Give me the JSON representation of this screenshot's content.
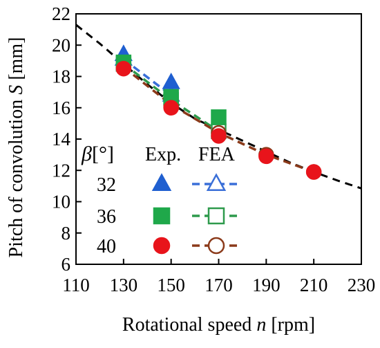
{
  "chart_data": {
    "type": "scatter",
    "xlabel_main": "Rotational speed ",
    "xlabel_var": "n",
    "xlabel_unit": " [rpm]",
    "ylabel_main": "Pitch of convolution ",
    "ylabel_var": "S",
    "ylabel_unit": " [mm]",
    "xlim": [
      110,
      230
    ],
    "ylim": [
      6,
      22
    ],
    "xticks": [
      110,
      130,
      150,
      170,
      190,
      210,
      230
    ],
    "yticks": [
      6,
      8,
      10,
      12,
      14,
      16,
      18,
      20,
      22
    ],
    "grid": false,
    "legend": {
      "position": "lower-left",
      "beta_symbol": "β",
      "beta_unit": "[°]",
      "exp_label": "Exp.",
      "fea_label": "FEA",
      "rows": [
        {
          "beta": "32",
          "marker": "triangle",
          "color": "#1f5fd0",
          "line_color": "#3a6fd8"
        },
        {
          "beta": "36",
          "marker": "square",
          "color": "#1fa84a",
          "line_color": "#2e9a4c"
        },
        {
          "beta": "40",
          "marker": "circle",
          "color": "#e8141b",
          "line_color": "#8b3a1a"
        }
      ]
    },
    "fit_curve": {
      "style": "dashed",
      "color": "#000000",
      "points": [
        [
          110,
          21.3
        ],
        [
          120,
          20.1
        ],
        [
          130,
          18.8
        ],
        [
          140,
          17.5
        ],
        [
          150,
          16.3
        ],
        [
          160,
          15.3
        ],
        [
          170,
          14.6
        ],
        [
          180,
          13.9
        ],
        [
          190,
          13.2
        ],
        [
          200,
          12.5
        ],
        [
          210,
          11.9
        ],
        [
          220,
          11.35
        ],
        [
          230,
          10.85
        ]
      ]
    },
    "series": [
      {
        "name": "32",
        "kind": "Exp",
        "marker": "triangle",
        "color": "#1f5fd0",
        "points": [
          [
            130,
            19.4
          ],
          [
            150,
            17.6
          ]
        ]
      },
      {
        "name": "32",
        "kind": "FEA",
        "marker": "triangle-open",
        "color": "#3a6fd8",
        "line": true,
        "points": [
          [
            130,
            19.1
          ],
          [
            150,
            16.8
          ]
        ]
      },
      {
        "name": "36",
        "kind": "Exp",
        "marker": "square",
        "color": "#1fa84a",
        "points": [
          [
            130,
            18.9
          ],
          [
            150,
            16.7
          ],
          [
            170,
            15.4
          ]
        ]
      },
      {
        "name": "36",
        "kind": "FEA",
        "marker": "square-open",
        "color": "#2e9a4c",
        "line": true,
        "points": [
          [
            130,
            18.8
          ],
          [
            150,
            16.5
          ],
          [
            170,
            14.5
          ]
        ]
      },
      {
        "name": "40",
        "kind": "Exp",
        "marker": "circle",
        "color": "#e8141b",
        "points": [
          [
            130,
            18.5
          ],
          [
            150,
            16.0
          ],
          [
            170,
            14.2
          ],
          [
            190,
            12.9
          ],
          [
            210,
            11.9
          ]
        ]
      },
      {
        "name": "40",
        "kind": "FEA",
        "marker": "circle-open",
        "color": "#8b3a1a",
        "line": true,
        "points": [
          [
            130,
            18.6
          ],
          [
            150,
            16.2
          ],
          [
            170,
            14.4
          ],
          [
            190,
            13.0
          ],
          [
            210,
            11.9
          ]
        ]
      }
    ]
  }
}
